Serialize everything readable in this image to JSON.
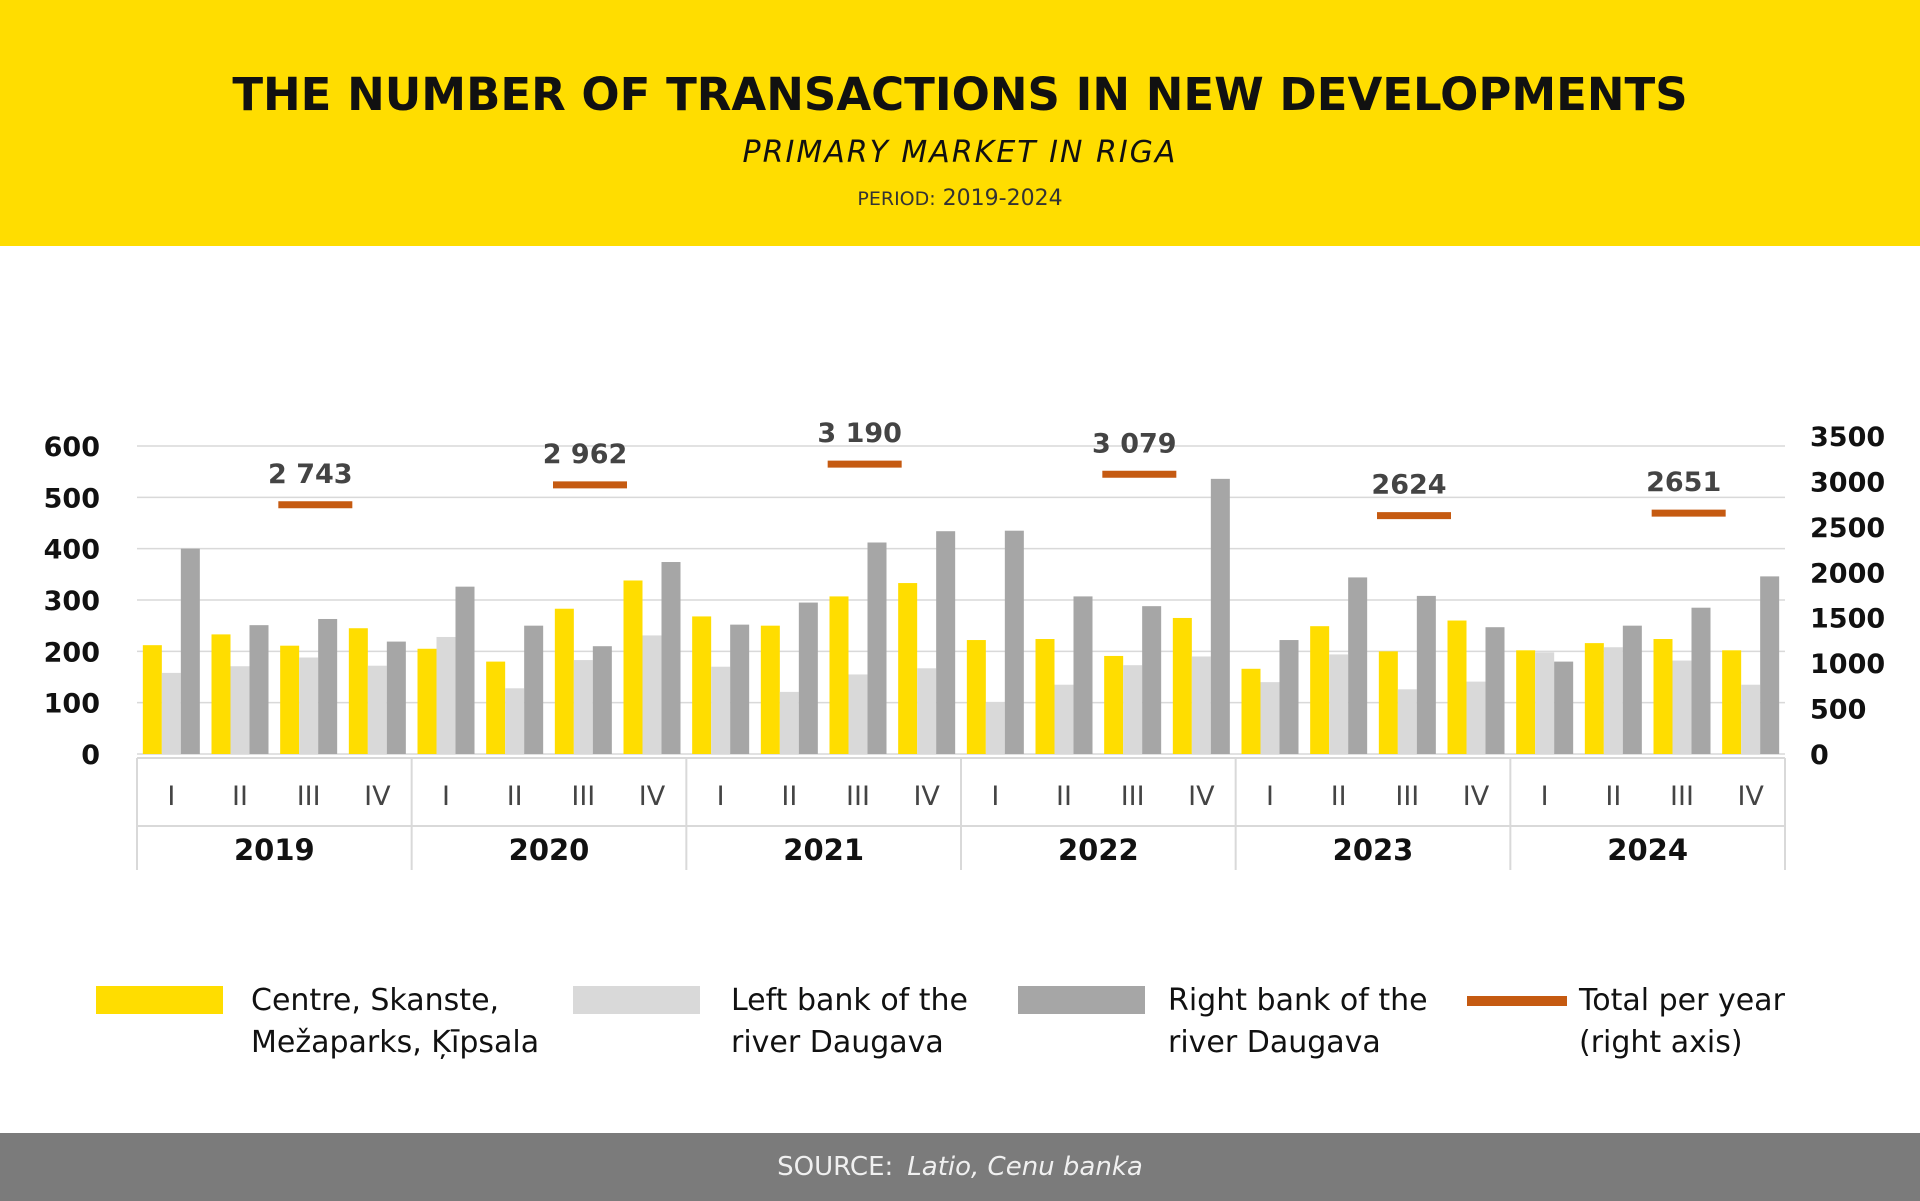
{
  "header": {
    "title": "THE NUMBER OF TRANSACTIONS IN NEW DEVELOPMENTS",
    "subtitle": "PRIMARY MARKET IN RIGA",
    "period_label": "PERIOD:",
    "period_value": "2019-2024"
  },
  "footer": {
    "source_label": "SOURCE:",
    "source_value": "Latio, Cenu banka"
  },
  "colors": {
    "header_bg": "#FFDD00",
    "centre": "#FFDD00",
    "left_bank": "#D9D9D9",
    "right_bank": "#A6A6A6",
    "total": "#C55A11",
    "footer_bg": "#7B7B7B"
  },
  "legend": [
    {
      "key": "centre",
      "label": "Centre, Skanste,\nMežaparks, Ķīpsala"
    },
    {
      "key": "left_bank",
      "label": "Left bank of the\nriver Daugava"
    },
    {
      "key": "right_bank",
      "label": "Right bank of the\nriver Daugava"
    },
    {
      "key": "total",
      "label": "Total per year\n(right axis)"
    }
  ],
  "chart_data": {
    "type": "bar",
    "years": [
      "2019",
      "2020",
      "2021",
      "2022",
      "2023",
      "2024"
    ],
    "quarters": [
      "I",
      "II",
      "III",
      "IV"
    ],
    "left_axis": {
      "ylim": [
        0,
        600
      ],
      "ticks": [
        "0",
        "100",
        "200",
        "300",
        "400",
        "500",
        "600"
      ]
    },
    "right_axis": {
      "ylim": [
        0,
        3500
      ],
      "ticks": [
        "0",
        "500",
        "1000",
        "1500",
        "2000",
        "2500",
        "3000",
        "3500"
      ]
    },
    "grid": true,
    "legend_position": "bottom",
    "series": [
      {
        "name": "Centre, Skanste, Mežaparks, Ķīpsala",
        "key": "centre",
        "axis": "left",
        "values": [
          212,
          233,
          211,
          245,
          205,
          180,
          283,
          338,
          268,
          250,
          307,
          333,
          222,
          224,
          191,
          265,
          166,
          249,
          200,
          260,
          202,
          216,
          224,
          202
        ]
      },
      {
        "name": "Left bank of the river Daugava",
        "key": "left_bank",
        "axis": "left",
        "values": [
          158,
          171,
          188,
          172,
          228,
          128,
          183,
          231,
          170,
          121,
          155,
          167,
          100,
          135,
          173,
          190,
          140,
          194,
          126,
          141,
          198,
          208,
          182,
          135
        ]
      },
      {
        "name": "Right bank of the river Daugava",
        "key": "right_bank",
        "axis": "left",
        "values": [
          400,
          251,
          263,
          219,
          326,
          250,
          210,
          374,
          252,
          295,
          412,
          434,
          435,
          307,
          288,
          536,
          222,
          344,
          308,
          247,
          180,
          250,
          285,
          346
        ]
      },
      {
        "name": "Total per year (right axis)",
        "key": "total",
        "type": "line-segment",
        "axis": "right",
        "values": [
          2743,
          2962,
          3190,
          3079,
          2624,
          2651
        ],
        "labels": [
          "2 743",
          "2 962",
          "3 190",
          "3 079",
          "2624",
          "2651"
        ]
      }
    ]
  }
}
